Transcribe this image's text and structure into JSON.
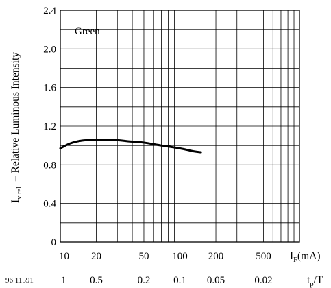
{
  "chart_data": {
    "type": "line",
    "legend": "Green",
    "ylabel": {
      "main": "I",
      "sub": "v rel",
      "rest": "  – Relative Luminous Intensity"
    },
    "xlabel": {
      "main": "I",
      "sub": "F",
      "rest": "(mA)"
    },
    "x2label": {
      "main": "t",
      "sub": "p",
      "rest": "/T"
    },
    "doc_id": "96 11591",
    "x_scale": "log",
    "xlim": [
      10,
      1000
    ],
    "ylim": [
      0,
      2.4
    ],
    "grid": true,
    "y_ticks": [
      0,
      0.4,
      0.8,
      1.2,
      1.6,
      2.0,
      2.4
    ],
    "y_tick_labels": [
      "0",
      "0.4",
      "0.8",
      "1.2",
      "1.6",
      "2.0",
      "2.4"
    ],
    "x_ticks": [
      10,
      20,
      50,
      100,
      200,
      500
    ],
    "x_tick_labels": [
      "10",
      "20",
      "50",
      "100",
      "200",
      "500"
    ],
    "x2_ticks": [
      10,
      20,
      50,
      100,
      200,
      500
    ],
    "x2_tick_labels": [
      "1",
      "0.5",
      "0.2",
      "0.1",
      "0.05",
      "0.02"
    ],
    "series": [
      {
        "x": [
          10,
          12,
          15,
          20,
          25,
          30,
          40,
          50,
          70,
          100,
          130,
          150
        ],
        "y": [
          0.97,
          1.02,
          1.05,
          1.06,
          1.06,
          1.055,
          1.04,
          1.03,
          1.0,
          0.97,
          0.94,
          0.93
        ]
      }
    ]
  }
}
